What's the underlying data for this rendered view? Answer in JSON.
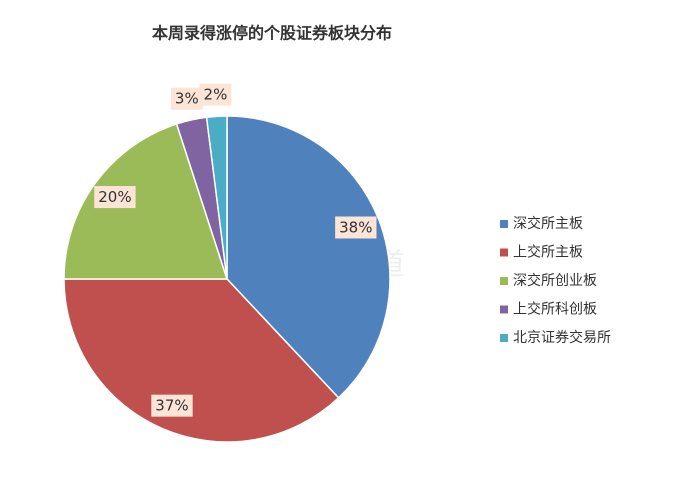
{
  "chart_data": {
    "type": "pie",
    "title": "本周录得涨停的个股证券板块分布",
    "categories": [
      "深交所主板",
      "上交所主板",
      "深交所创业板",
      "上交所科创板",
      "北京证券交易所"
    ],
    "values": [
      38,
      37,
      20,
      3,
      2
    ],
    "value_labels": [
      "38%",
      "37%",
      "20%",
      "3%",
      "2%"
    ],
    "colors": [
      "#4f81bd",
      "#c0504d",
      "#9bbb59",
      "#8064a2",
      "#4bacc6"
    ],
    "legend": "right",
    "watermark": "财联社股市频道"
  }
}
